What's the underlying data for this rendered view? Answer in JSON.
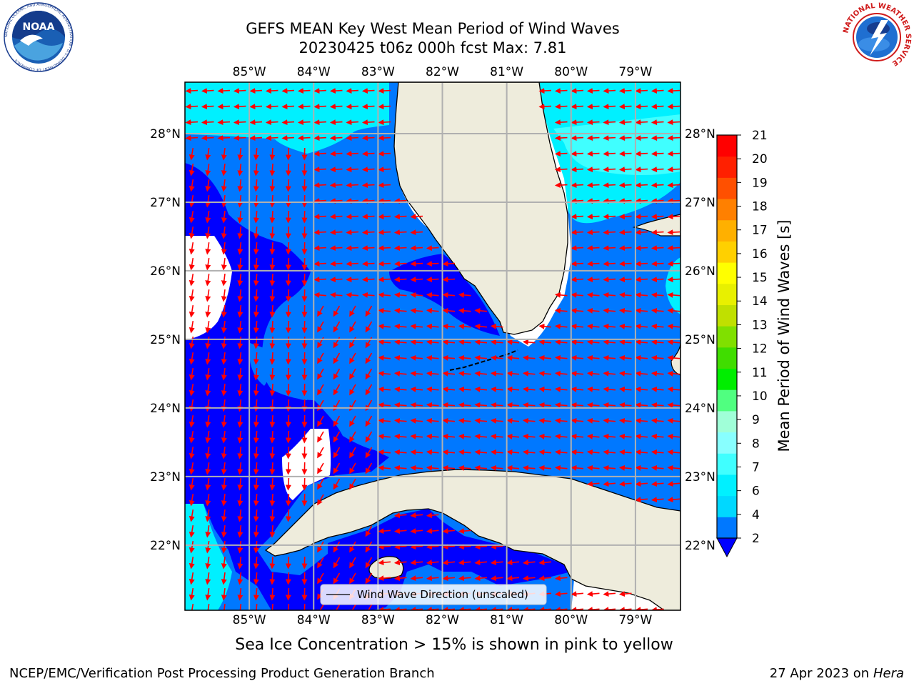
{
  "header": {
    "title_line1": "GEFS MEAN Key West Mean Period of Wind Waves",
    "title_line2": "20230425 t06z 000h fcst   Max: 7.81"
  },
  "logos": {
    "left": "noaa-logo",
    "left_text": "NOAA",
    "left_ring_text": "NATIONAL OCEANIC AND ATMOSPHERIC ADMINISTRATION · U.S. DEPARTMENT OF COMMERCE",
    "right": "nws-logo",
    "right_ring_text": "NATIONAL WEATHER SERVICE"
  },
  "map": {
    "lon_labels": [
      "85°W",
      "84°W",
      "83°W",
      "82°W",
      "81°W",
      "80°W",
      "79°W"
    ],
    "lat_labels": [
      "28°N",
      "27°N",
      "26°N",
      "25°N",
      "24°N",
      "23°N",
      "22°N"
    ],
    "lon_values": [
      -85,
      -84,
      -83,
      -82,
      -81,
      -80,
      -79
    ],
    "lat_values": [
      28,
      27,
      26,
      25,
      24,
      23,
      22
    ],
    "extent": {
      "lon_min": -86,
      "lon_max": -78.3,
      "lat_min": 21.05,
      "lat_max": 28.75
    },
    "legend_label": "Wind Wave Direction (unscaled)",
    "arrow_color": "#ff0000",
    "land_color": "#eeecdc",
    "grid": true
  },
  "colorbar": {
    "label": "Mean Period of Wind Waves [s]",
    "ticks": [
      "2",
      "4",
      "6",
      "7",
      "8",
      "9",
      "10",
      "11",
      "12",
      "13",
      "14",
      "15",
      "16",
      "17",
      "18",
      "19",
      "20",
      "21"
    ],
    "colors": [
      "#0078ff",
      "#00d8ff",
      "#00f0ff",
      "#40ffff",
      "#88ffff",
      "#a0ffd8",
      "#50ff80",
      "#00ee00",
      "#40dd00",
      "#80e000",
      "#c0e000",
      "#e8f000",
      "#ffff00",
      "#ffd000",
      "#ffb000",
      "#ff8000",
      "#ff5000",
      "#ff2000",
      "#ff0000"
    ],
    "under_color": "#0000ff"
  },
  "chart_data": {
    "type": "heatmap",
    "title": "GEFS MEAN Key West Mean Period of Wind Waves",
    "subtitle": "20230425 t06z 000h fcst   Max: 7.81",
    "colorbar_label": "Mean Period of Wind Waves [s]",
    "colorbar_range": [
      2,
      21
    ],
    "max_value": 7.81,
    "xlim": [
      -86,
      -78.3
    ],
    "ylim": [
      21.05,
      28.75
    ],
    "value_bands": [
      {
        "range": "<2",
        "color": "#0000ff"
      },
      {
        "range": "2-4",
        "color": "#0078ff"
      },
      {
        "range": "4-6",
        "color": "#00f0ff"
      },
      {
        "range": "6-7",
        "color": "#40ffff"
      }
    ],
    "vector_field": "Wind Wave Direction (unscaled)"
  },
  "footer": {
    "note": "Sea Ice Concentration > 15% is shown in pink to yellow",
    "credit_left": "NCEP/EMC/Verification Post Processing Product Generation Branch",
    "credit_date": "27 Apr 2023 on ",
    "credit_machine": "Hera"
  }
}
